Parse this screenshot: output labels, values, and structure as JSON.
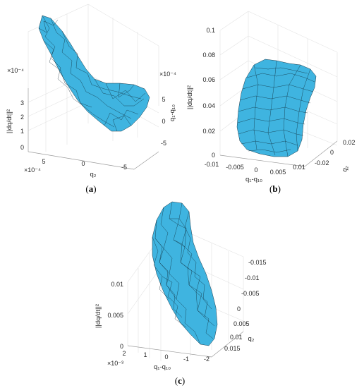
{
  "panels": [
    {
      "id": "a",
      "caption_letter": "a",
      "z_ticks": [
        "3",
        "2",
        "1",
        "0"
      ],
      "z_exponent": "×10⁻⁴",
      "z_label": "||dq/dt||²",
      "x_ticks": [
        "5",
        "0",
        "-5"
      ],
      "x_exponent": "×10⁻⁴",
      "x_label": "q₂",
      "y_ticks": [
        "5",
        "0",
        "-5"
      ],
      "y_exponent": "×10⁻⁴",
      "y_label": "q₁-q₁₀"
    },
    {
      "id": "b",
      "caption_letter": "b",
      "z_ticks": [
        "0.1",
        "0.08",
        "0.06",
        "0.04",
        "0.02",
        "0"
      ],
      "z_label": "||dq/dt||²",
      "x_ticks": [
        "-0.01",
        "-0.005",
        "0",
        "0.005",
        "0.01"
      ],
      "x_label": "q₁-q₁₀",
      "y_ticks": [
        "0.02",
        "0",
        "-0.02"
      ],
      "y_label": "q₂"
    },
    {
      "id": "c",
      "caption_letter": "c",
      "z_ticks": [
        "0.01",
        "0.005",
        "0"
      ],
      "z_label": "||dq/dt||²",
      "x_ticks": [
        "2",
        "1",
        "0",
        "-1",
        "-2"
      ],
      "x_exponent": "×10⁻³",
      "x_label": "q₁-q₁₀",
      "y_ticks": [
        "-0.015",
        "-0.01",
        "-0.005",
        "0",
        "0.005",
        "0.01",
        "0.015"
      ],
      "y_label": "q₂"
    }
  ],
  "colors": {
    "surface": "#3fb4e0",
    "edges": "#0d2a3a",
    "grid": "#e3e3e3"
  }
}
